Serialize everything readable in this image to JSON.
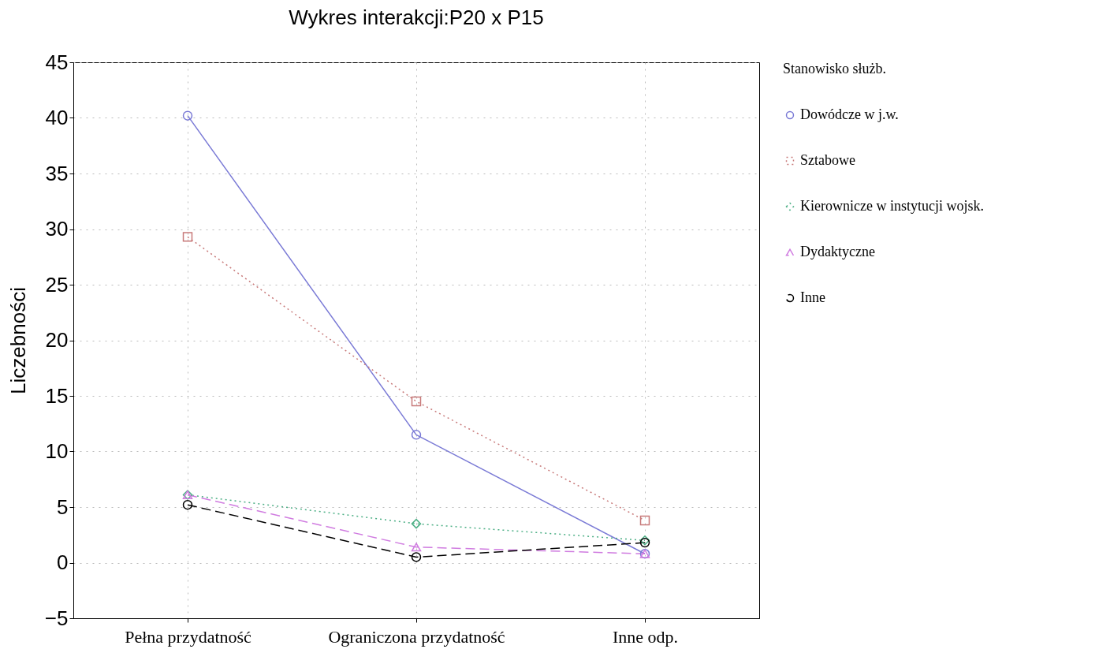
{
  "chart_data": {
    "type": "line",
    "title": "Wykres interakcji:P20 x P15",
    "ylabel": "Liczebności",
    "legend_title": "Stanowisko służb.",
    "categories": [
      "Pełna przydatność",
      "Ograniczona przydatność",
      "Inne odp."
    ],
    "ylim": [
      -5,
      45
    ],
    "yticks": [
      -5,
      0,
      5,
      10,
      15,
      20,
      25,
      30,
      35,
      40,
      45
    ],
    "grid": true,
    "legend": "right",
    "series": [
      {
        "name": "Dowódcze w j.w.",
        "color": "#7b7bd6",
        "marker": "circle",
        "line_style": "solid",
        "values": [
          40.2,
          11.5,
          0.8
        ]
      },
      {
        "name": "Sztabowe",
        "color": "#c87a7a",
        "marker": "square",
        "line_style": "dotted",
        "values": [
          29.3,
          14.5,
          3.8
        ]
      },
      {
        "name": "Kierownicze w instytucji wojsk.",
        "color": "#4caf85",
        "marker": "diamond",
        "line_style": "dotted",
        "values": [
          6.1,
          3.5,
          2.0
        ]
      },
      {
        "name": "Dydaktyczne",
        "color": "#d07ce0",
        "marker": "triangle",
        "line_style": "dashed",
        "values": [
          6.1,
          1.4,
          0.8
        ]
      },
      {
        "name": "Inne",
        "color": "#000000",
        "marker": "circle",
        "line_style": "dashed",
        "values": [
          5.2,
          0.5,
          1.8
        ]
      }
    ]
  }
}
